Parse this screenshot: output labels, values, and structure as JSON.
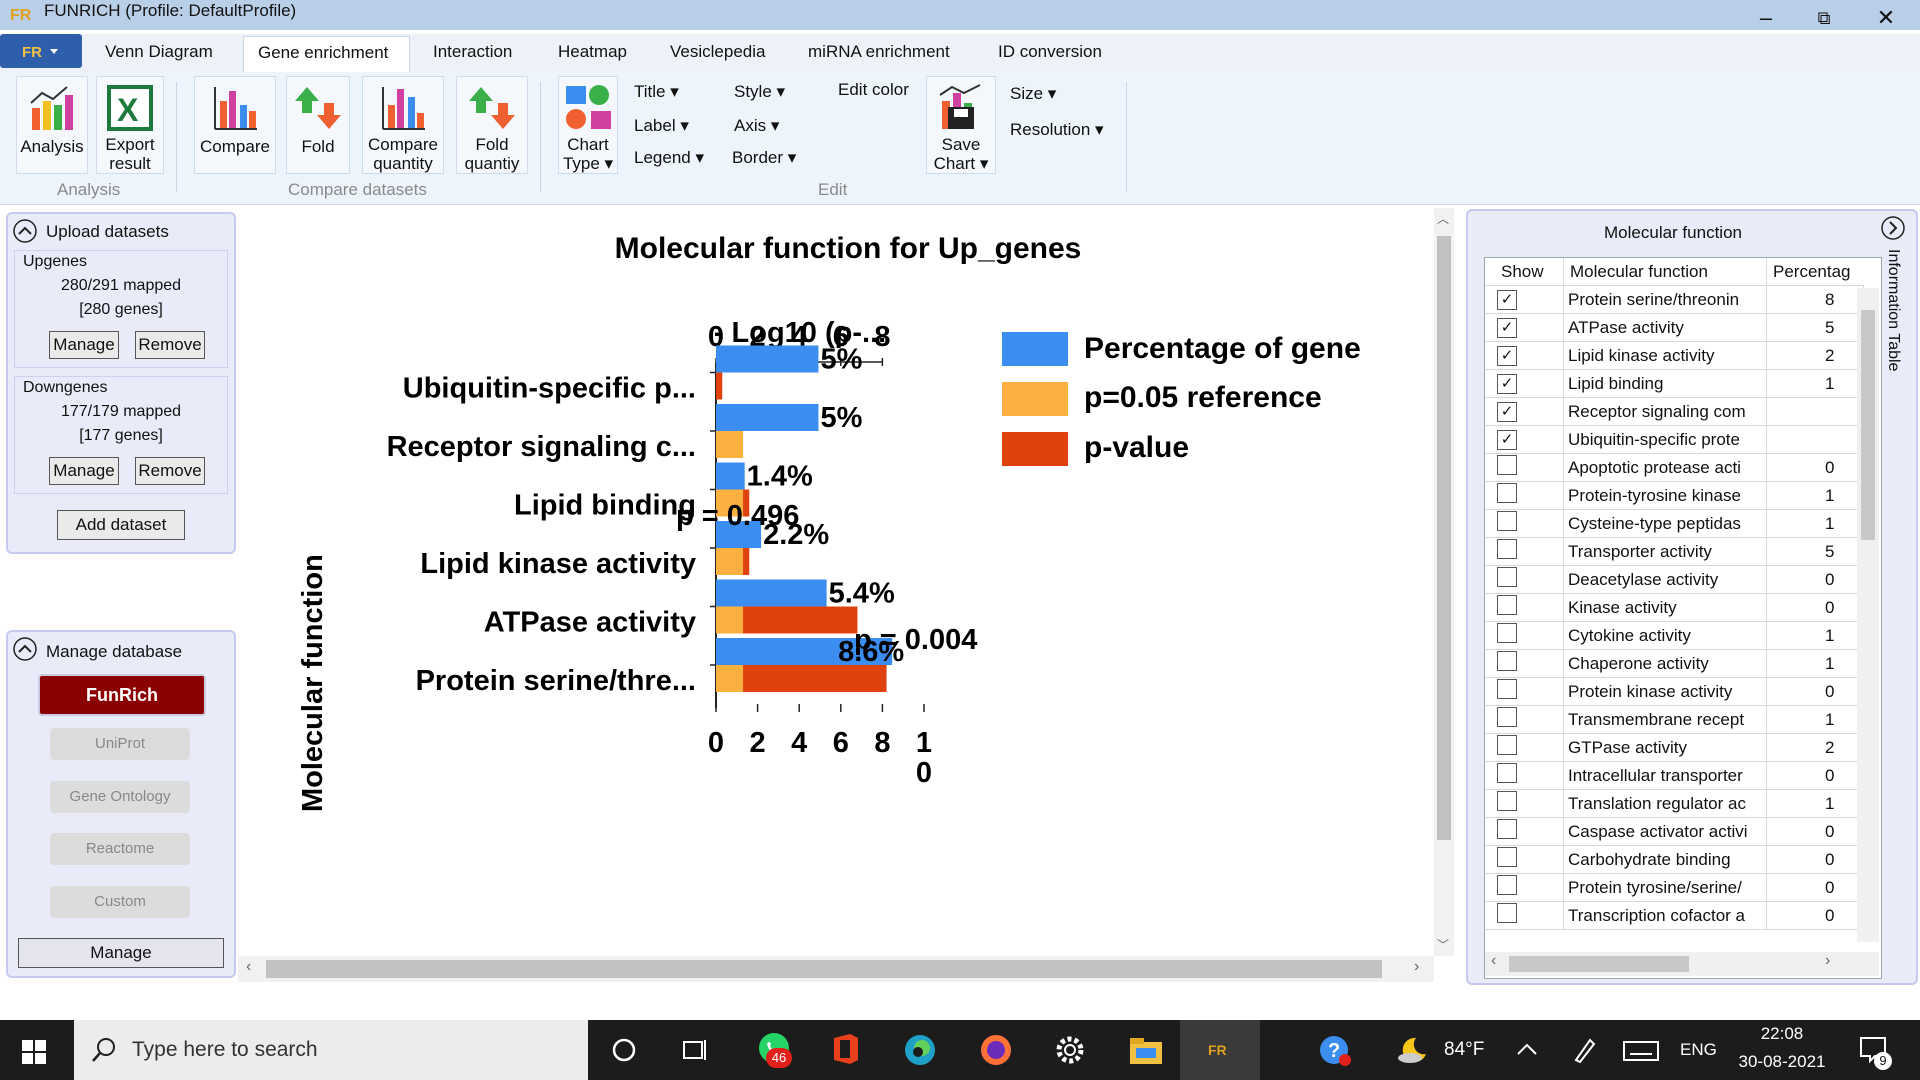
{
  "window": {
    "title": "FUNRICH (Profile:  DefaultProfile)",
    "min": "–",
    "restore": "⧉",
    "close": "✕"
  },
  "tabs": [
    "Venn Diagram",
    "Gene enrichment",
    "Interaction",
    "Heatmap",
    "Vesiclepedia",
    "miRNA enrichment",
    "ID conversion"
  ],
  "ribbon": {
    "analysis": "Analysis",
    "export": [
      "Export",
      "result"
    ],
    "compare": "Compare",
    "fold": "Fold",
    "compare_quantity": [
      "Compare",
      "quantity"
    ],
    "fold_quantiy": [
      "Fold",
      "quantiy"
    ],
    "chart_type": [
      "Chart",
      "Type ▾"
    ],
    "title": "Title ▾",
    "label": "Label ▾",
    "legend": "Legend ▾",
    "style": "Style ▾",
    "axis": "Axis ▾",
    "border": "Border ▾",
    "edit_color": "Edit color",
    "save_chart": [
      "Save",
      "Chart ▾"
    ],
    "size": "Size ▾",
    "resolution": "Resolution ▾",
    "group_analysis": "Analysis",
    "group_compare": "Compare datasets",
    "group_edit": "Edit"
  },
  "upload": {
    "header": "Upload datasets",
    "datasets": [
      {
        "name": "Upgenes",
        "mapped": "280/291 mapped",
        "genes": "[280 genes]",
        "manage": "Manage",
        "remove": "Remove"
      },
      {
        "name": "Downgenes",
        "mapped": "177/179 mapped",
        "genes": "[177 genes]",
        "manage": "Manage",
        "remove": "Remove"
      }
    ],
    "add": "Add dataset"
  },
  "database": {
    "header": "Manage database",
    "funrich": "FunRich",
    "uniprot": "UniProt",
    "go": "Gene Ontology",
    "reactome": "Reactome",
    "custom": "Custom",
    "manage": "Manage"
  },
  "chart_data": {
    "type": "bar",
    "title": "Molecular function for Up_genes",
    "ylabel": "Molecular function",
    "top_axis_label": "- Log10 (p-...",
    "top_ticks": [
      "0",
      "2",
      "4",
      "6",
      "8"
    ],
    "bottom_ticks": [
      "0",
      "2",
      "4",
      "6",
      "8",
      "1",
      "0"
    ],
    "categories": [
      "Protein serine/thre...",
      "ATPase activity",
      "Lipid kinase activity",
      "Lipid binding",
      "Receptor signaling c...",
      "Ubiquitin-specific p..."
    ],
    "series": [
      {
        "name": "Percentage of gene",
        "values": [
          8.6,
          5.4,
          2.2,
          1.4,
          5,
          5
        ]
      },
      {
        "name": "p=0.05 reference",
        "values": [
          1.3,
          1.3,
          1.3,
          1.3,
          1.3,
          0
        ]
      },
      {
        "name": "p-value",
        "values": [
          8.2,
          6.8,
          1.6,
          1.6,
          0.4,
          0.3
        ]
      }
    ],
    "data_labels": [
      "8.6%",
      "5.4%",
      "2.2%",
      "1.4%",
      "5%",
      "5%"
    ],
    "annotations": [
      "p = 0.496",
      "p = 0.004"
    ],
    "colors": {
      "pct": "#3b8ef0",
      "ref": "#fbb040",
      "pval": "#e0420e"
    }
  },
  "info_table": {
    "title": "Molecular function",
    "side_label": "Information Table",
    "headers": [
      "Show",
      "Molecular function",
      "Percentag"
    ],
    "rows": [
      {
        "checked": true,
        "name": "Protein serine/threonin",
        "pct": "8"
      },
      {
        "checked": true,
        "name": "ATPase activity",
        "pct": "5"
      },
      {
        "checked": true,
        "name": "Lipid kinase activity",
        "pct": "2"
      },
      {
        "checked": true,
        "name": "Lipid binding",
        "pct": "1"
      },
      {
        "checked": true,
        "name": "Receptor signaling com",
        "pct": ""
      },
      {
        "checked": true,
        "name": "Ubiquitin-specific prote",
        "pct": ""
      },
      {
        "checked": false,
        "name": "Apoptotic protease acti",
        "pct": "0"
      },
      {
        "checked": false,
        "name": "Protein-tyrosine kinase",
        "pct": "1"
      },
      {
        "checked": false,
        "name": "Cysteine-type peptidas",
        "pct": "1"
      },
      {
        "checked": false,
        "name": "Transporter activity",
        "pct": "5"
      },
      {
        "checked": false,
        "name": "Deacetylase activity",
        "pct": "0"
      },
      {
        "checked": false,
        "name": "Kinase activity",
        "pct": "0"
      },
      {
        "checked": false,
        "name": "Cytokine activity",
        "pct": "1"
      },
      {
        "checked": false,
        "name": "Chaperone activity",
        "pct": "1"
      },
      {
        "checked": false,
        "name": "Protein kinase activity",
        "pct": "0"
      },
      {
        "checked": false,
        "name": "Transmembrane recept",
        "pct": "1"
      },
      {
        "checked": false,
        "name": "GTPase activity",
        "pct": "2"
      },
      {
        "checked": false,
        "name": "Intracellular transporter",
        "pct": "0"
      },
      {
        "checked": false,
        "name": "Translation regulator ac",
        "pct": "1"
      },
      {
        "checked": false,
        "name": "Caspase activator activi",
        "pct": "0"
      },
      {
        "checked": false,
        "name": "Carbohydrate binding",
        "pct": "0"
      },
      {
        "checked": false,
        "name": "Protein tyrosine/serine/",
        "pct": "0"
      },
      {
        "checked": false,
        "name": "Transcription cofactor a",
        "pct": "0"
      }
    ]
  },
  "taskbar": {
    "search_placeholder": "Type here to search",
    "whatsapp_badge": "46",
    "temp": "84°F",
    "lang": "ENG",
    "time": "22:08",
    "date": "30-08-2021",
    "notif": "9"
  }
}
